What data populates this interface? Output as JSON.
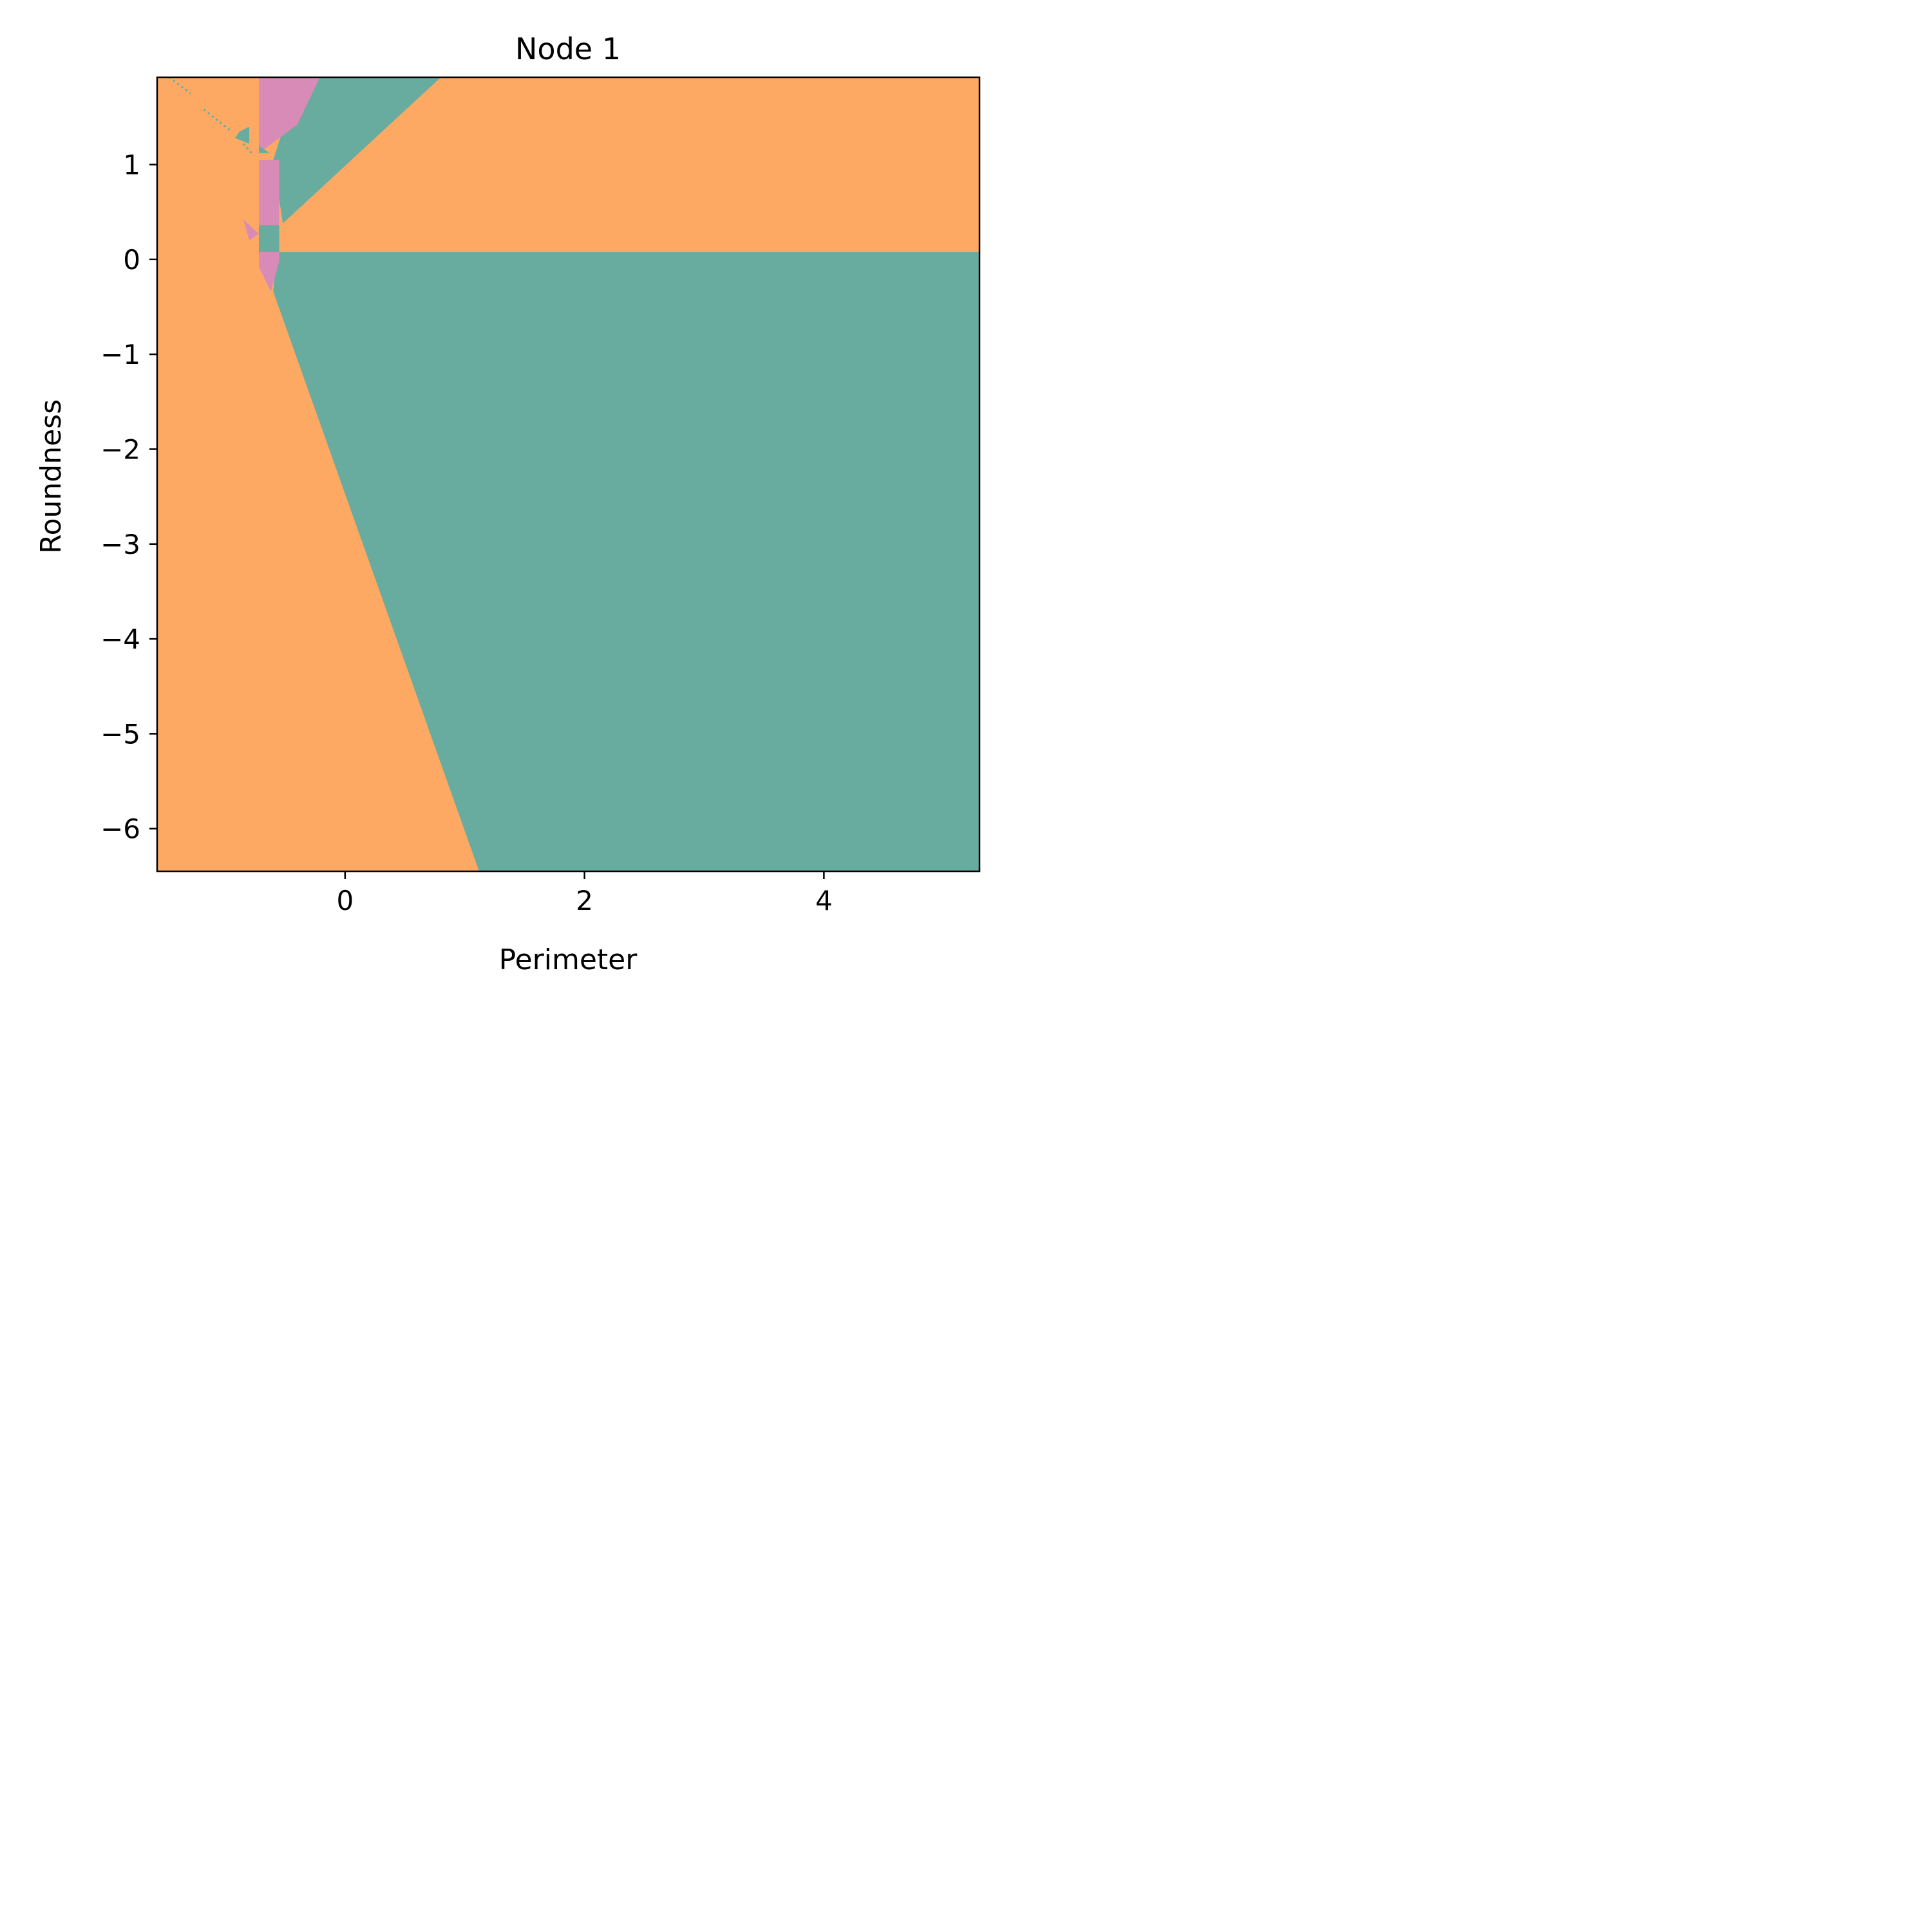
{
  "chart_data": {
    "type": "heatmap",
    "subtype": "decision-regions",
    "title": "Node 1",
    "xlabel": "Perimeter",
    "ylabel": "Roundness",
    "xlim": [
      -1.57,
      5.3
    ],
    "ylim": [
      -6.45,
      1.92
    ],
    "xticks": [
      0,
      2,
      4
    ],
    "xtick_labels": [
      "0",
      "2",
      "4"
    ],
    "yticks": [
      1,
      0,
      -1,
      -2,
      -3,
      -4,
      -5,
      -6
    ],
    "ytick_labels": [
      "1",
      "0",
      "−1",
      "−2",
      "−3",
      "−4",
      "−5",
      "−6"
    ],
    "grid": false,
    "legend": "none",
    "colors": {
      "orange": "#fea963",
      "teal": "#68ab9f",
      "pink": "#d98bb7"
    },
    "regions": [
      {
        "class": "teal",
        "polygon": [
          [
            -0.57,
            0.08
          ],
          [
            5.3,
            0.08
          ],
          [
            5.3,
            -6.45
          ],
          [
            1.12,
            -6.45
          ],
          [
            -0.6,
            -0.34
          ]
        ]
      },
      {
        "class": "teal",
        "polygon": [
          [
            -0.38,
            1.92
          ],
          [
            0.8,
            1.92
          ],
          [
            -0.52,
            0.38
          ],
          [
            -0.6,
            1.05
          ]
        ]
      },
      {
        "class": "pink",
        "polygon": [
          [
            -0.72,
            1.92
          ],
          [
            -0.21,
            1.92
          ],
          [
            -0.4,
            1.42
          ],
          [
            -0.72,
            1.12
          ]
        ]
      },
      {
        "class": "pink",
        "polygon": [
          [
            -0.72,
            1.05
          ],
          [
            -0.55,
            1.05
          ],
          [
            -0.55,
            0.36
          ],
          [
            -0.72,
            0.36
          ]
        ]
      },
      {
        "class": "pink",
        "polygon": [
          [
            -0.85,
            0.42
          ],
          [
            -0.72,
            0.27
          ],
          [
            -0.8,
            0.2
          ]
        ]
      },
      {
        "class": "pink",
        "polygon": [
          [
            -0.72,
            0.08
          ],
          [
            -0.55,
            0.08
          ],
          [
            -0.55,
            -0.02
          ],
          [
            -0.62,
            -0.34
          ],
          [
            -0.72,
            -0.08
          ]
        ]
      },
      {
        "class": "teal",
        "polygon": [
          [
            -0.72,
            0.36
          ],
          [
            -0.55,
            0.36
          ],
          [
            -0.55,
            0.08
          ],
          [
            -0.72,
            0.08
          ]
        ]
      },
      {
        "class": "teal",
        "polygon": [
          [
            -0.72,
            1.12
          ],
          [
            -0.63,
            1.12
          ],
          [
            -0.72,
            1.2
          ]
        ]
      },
      {
        "class": "teal",
        "polygon": [
          [
            -0.88,
            1.35
          ],
          [
            -0.8,
            1.4
          ],
          [
            -0.8,
            1.22
          ],
          [
            -0.92,
            1.28
          ]
        ]
      }
    ],
    "lines": [
      {
        "class": "teal",
        "points": [
          [
            -1.47,
            1.92
          ],
          [
            -1.29,
            1.75
          ]
        ]
      },
      {
        "class": "teal",
        "points": [
          [
            -1.18,
            1.58
          ],
          [
            -0.95,
            1.35
          ]
        ]
      },
      {
        "class": "teal",
        "points": [
          [
            -0.85,
            1.22
          ],
          [
            -0.78,
            1.12
          ]
        ]
      }
    ]
  }
}
